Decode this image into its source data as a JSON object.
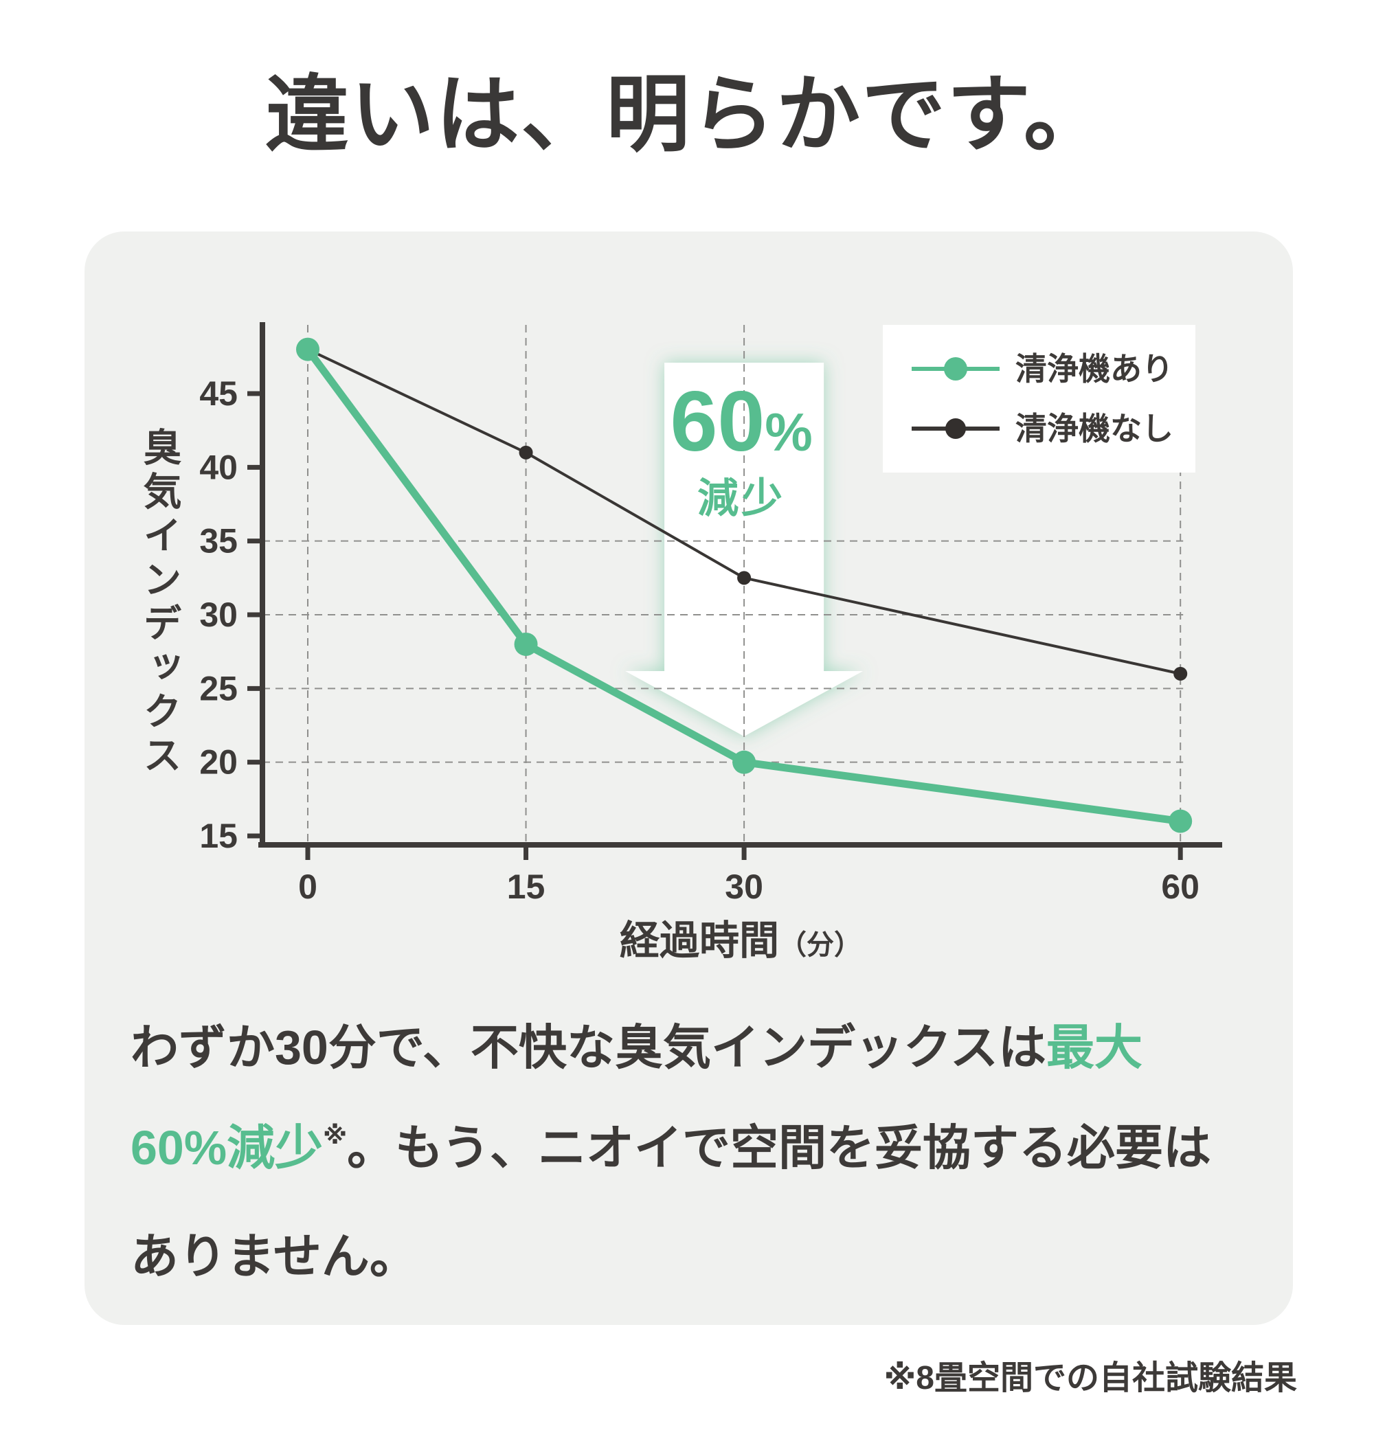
{
  "title": "違いは、明らかです。",
  "chart_data": {
    "type": "line",
    "x": [
      0,
      15,
      30,
      60
    ],
    "x_tick_labels": [
      "0",
      "15",
      "30",
      "60"
    ],
    "xlabel": "経過時間",
    "xlabel_unit": "（分）",
    "ylabel": "臭気インデックス",
    "y_ticks": [
      45,
      40,
      35,
      30,
      25,
      20,
      15
    ],
    "grid_x": [
      0,
      15,
      30,
      60
    ],
    "grid_y": [
      35,
      30,
      25,
      20
    ],
    "xlim": [
      -3.1,
      62.6
    ],
    "ylim": [
      15,
      49.7
    ],
    "grid": "dashed",
    "legend_position": "top-right",
    "series": [
      {
        "name": "清浄機あり",
        "color": "#57bd8f",
        "marker_color": "#57bd8f",
        "values": [
          48,
          28,
          20,
          16
        ],
        "line_width": 11,
        "marker_radius": 17
      },
      {
        "name": "清浄機なし",
        "color": "#393634",
        "marker_color": "#332f2d",
        "values": [
          48,
          41,
          32.5,
          26
        ],
        "line_width": 4,
        "marker_radius": 10
      }
    ],
    "annotation": {
      "value": "60",
      "unit": "%",
      "label": "減少",
      "color": "#57bd8f",
      "arrow": "down",
      "at_x": 30
    }
  },
  "body": {
    "line1_dark": "わずか30分で、不快な臭気インデックスは",
    "line1_green": "最大",
    "line2_green": "60%減少",
    "line2_sup": "※",
    "line2_dark": "。もう、ニオイで空間を妥協する必要は",
    "line3_dark": "ありません。"
  },
  "footnote": "※8畳空間での自社試験結果",
  "colors": {
    "accent_green": "#57bd8f",
    "text_dark": "#3d3a38",
    "card_bg": "#f0f1ef",
    "axis": "#3e3b39",
    "grid": "#8f8f8d",
    "arrow_fill": "#ffffff",
    "legend_bg": "#ffffff"
  }
}
